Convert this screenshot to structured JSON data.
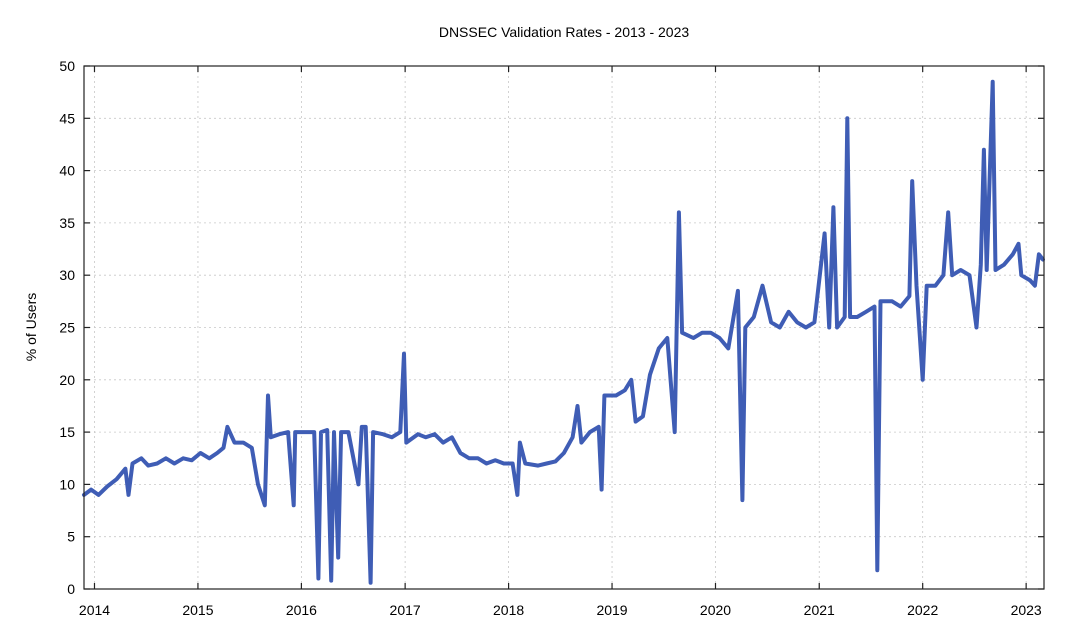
{
  "chart_data": {
    "type": "line",
    "title": "DNSSEC Validation Rates - 2013 - 2023",
    "xlabel": "",
    "ylabel": "% of Users",
    "xlim": [
      "2013-11-25",
      "2023-03-05"
    ],
    "ylim": [
      0,
      50
    ],
    "yticks": [
      0,
      5,
      10,
      15,
      20,
      25,
      30,
      35,
      40,
      45,
      50
    ],
    "xticks": [
      "2014-01-01",
      "2015-01-01",
      "2016-01-01",
      "2017-01-01",
      "2018-01-01",
      "2019-01-01",
      "2020-01-01",
      "2021-01-01",
      "2022-01-01",
      "2023-01-01"
    ],
    "xtick_labels": [
      "2014",
      "2015",
      "2016",
      "2017",
      "2018",
      "2019",
      "2020",
      "2021",
      "2022",
      "2023"
    ],
    "grid": true,
    "legend": "none",
    "color": "#3f5db5",
    "series": [
      {
        "values": [
          [
            "2013-11-25",
            9.0
          ],
          [
            "2013-12-20",
            9.5
          ],
          [
            "2014-01-15",
            9.0
          ],
          [
            "2014-02-15",
            9.8
          ],
          [
            "2014-03-20",
            10.5
          ],
          [
            "2014-04-20",
            11.5
          ],
          [
            "2014-05-01",
            9.0
          ],
          [
            "2014-05-15",
            12.0
          ],
          [
            "2014-06-15",
            12.5
          ],
          [
            "2014-07-10",
            11.8
          ],
          [
            "2014-08-10",
            12.0
          ],
          [
            "2014-09-10",
            12.5
          ],
          [
            "2014-10-10",
            12.0
          ],
          [
            "2014-11-10",
            12.5
          ],
          [
            "2014-12-10",
            12.3
          ],
          [
            "2015-01-10",
            13.0
          ],
          [
            "2015-02-10",
            12.5
          ],
          [
            "2015-03-10",
            13.0
          ],
          [
            "2015-04-01",
            13.5
          ],
          [
            "2015-04-15",
            15.5
          ],
          [
            "2015-05-10",
            14.0
          ],
          [
            "2015-06-10",
            14.0
          ],
          [
            "2015-07-10",
            13.5
          ],
          [
            "2015-08-01",
            10.0
          ],
          [
            "2015-08-25",
            8.0
          ],
          [
            "2015-09-05",
            18.5
          ],
          [
            "2015-09-15",
            14.5
          ],
          [
            "2015-10-15",
            14.8
          ],
          [
            "2015-11-15",
            15.0
          ],
          [
            "2015-12-05",
            8.0
          ],
          [
            "2015-12-10",
            15.0
          ],
          [
            "2016-01-15",
            15.0
          ],
          [
            "2016-02-15",
            15.0
          ],
          [
            "2016-03-01",
            1.0
          ],
          [
            "2016-03-10",
            15.0
          ],
          [
            "2016-04-01",
            15.2
          ],
          [
            "2016-04-15",
            0.8
          ],
          [
            "2016-04-25",
            15.0
          ],
          [
            "2016-05-10",
            3.0
          ],
          [
            "2016-05-20",
            15.0
          ],
          [
            "2016-06-15",
            15.0
          ],
          [
            "2016-07-20",
            10.0
          ],
          [
            "2016-08-01",
            15.5
          ],
          [
            "2016-08-15",
            15.5
          ],
          [
            "2016-09-01",
            0.6
          ],
          [
            "2016-09-10",
            15.0
          ],
          [
            "2016-10-15",
            14.8
          ],
          [
            "2016-11-15",
            14.5
          ],
          [
            "2016-12-15",
            15.0
          ],
          [
            "2016-12-28",
            22.5
          ],
          [
            "2017-01-05",
            14.0
          ],
          [
            "2017-02-15",
            14.8
          ],
          [
            "2017-03-15",
            14.5
          ],
          [
            "2017-04-15",
            14.8
          ],
          [
            "2017-05-15",
            14.0
          ],
          [
            "2017-06-15",
            14.5
          ],
          [
            "2017-07-15",
            13.0
          ],
          [
            "2017-08-15",
            12.5
          ],
          [
            "2017-09-15",
            12.5
          ],
          [
            "2017-10-15",
            12.0
          ],
          [
            "2017-11-15",
            12.3
          ],
          [
            "2017-12-15",
            12.0
          ],
          [
            "2018-01-15",
            12.0
          ],
          [
            "2018-02-01",
            9.0
          ],
          [
            "2018-02-10",
            14.0
          ],
          [
            "2018-03-01",
            12.0
          ],
          [
            "2018-04-15",
            11.8
          ],
          [
            "2018-05-15",
            12.0
          ],
          [
            "2018-06-15",
            12.2
          ],
          [
            "2018-07-15",
            13.0
          ],
          [
            "2018-08-15",
            14.5
          ],
          [
            "2018-09-01",
            17.5
          ],
          [
            "2018-09-15",
            14.0
          ],
          [
            "2018-10-15",
            15.0
          ],
          [
            "2018-11-15",
            15.5
          ],
          [
            "2018-11-25",
            9.5
          ],
          [
            "2018-12-05",
            18.5
          ],
          [
            "2019-01-15",
            18.5
          ],
          [
            "2019-02-15",
            19.0
          ],
          [
            "2019-03-10",
            20.0
          ],
          [
            "2019-03-25",
            16.0
          ],
          [
            "2019-04-20",
            16.5
          ],
          [
            "2019-05-15",
            20.5
          ],
          [
            "2019-06-15",
            23.0
          ],
          [
            "2019-07-15",
            24.0
          ],
          [
            "2019-08-10",
            15.0
          ],
          [
            "2019-08-25",
            36.0
          ],
          [
            "2019-09-05",
            24.5
          ],
          [
            "2019-10-15",
            24.0
          ],
          [
            "2019-11-15",
            24.5
          ],
          [
            "2019-12-15",
            24.5
          ],
          [
            "2020-01-15",
            24.0
          ],
          [
            "2020-02-15",
            23.0
          ],
          [
            "2020-03-20",
            28.5
          ],
          [
            "2020-04-05",
            8.5
          ],
          [
            "2020-04-15",
            25.0
          ],
          [
            "2020-05-15",
            26.0
          ],
          [
            "2020-06-15",
            29.0
          ],
          [
            "2020-07-15",
            25.5
          ],
          [
            "2020-08-15",
            25.0
          ],
          [
            "2020-09-15",
            26.5
          ],
          [
            "2020-10-15",
            25.5
          ],
          [
            "2020-11-15",
            25.0
          ],
          [
            "2020-12-15",
            25.5
          ],
          [
            "2021-01-20",
            34.0
          ],
          [
            "2021-02-05",
            25.0
          ],
          [
            "2021-02-20",
            36.5
          ],
          [
            "2021-03-05",
            25.0
          ],
          [
            "2021-04-01",
            26.0
          ],
          [
            "2021-04-10",
            45.0
          ],
          [
            "2021-04-20",
            26.0
          ],
          [
            "2021-05-15",
            26.0
          ],
          [
            "2021-06-15",
            26.5
          ],
          [
            "2021-07-15",
            27.0
          ],
          [
            "2021-07-25",
            1.8
          ],
          [
            "2021-08-05",
            27.5
          ],
          [
            "2021-09-15",
            27.5
          ],
          [
            "2021-10-15",
            27.0
          ],
          [
            "2021-11-15",
            28.0
          ],
          [
            "2021-11-25",
            39.0
          ],
          [
            "2021-12-10",
            29.0
          ],
          [
            "2022-01-01",
            20.0
          ],
          [
            "2022-01-15",
            29.0
          ],
          [
            "2022-02-15",
            29.0
          ],
          [
            "2022-03-15",
            30.0
          ],
          [
            "2022-04-01",
            36.0
          ],
          [
            "2022-04-15",
            30.0
          ],
          [
            "2022-05-15",
            30.5
          ],
          [
            "2022-06-15",
            30.0
          ],
          [
            "2022-07-10",
            25.0
          ],
          [
            "2022-07-25",
            31.0
          ],
          [
            "2022-08-05",
            42.0
          ],
          [
            "2022-08-15",
            30.5
          ],
          [
            "2022-09-05",
            48.5
          ],
          [
            "2022-09-15",
            30.5
          ],
          [
            "2022-10-15",
            31.0
          ],
          [
            "2022-11-15",
            32.0
          ],
          [
            "2022-12-05",
            33.0
          ],
          [
            "2022-12-15",
            30.0
          ],
          [
            "2023-01-15",
            29.5
          ],
          [
            "2023-02-01",
            29.0
          ],
          [
            "2023-02-15",
            32.0
          ],
          [
            "2023-03-01",
            31.5
          ]
        ]
      }
    ]
  }
}
